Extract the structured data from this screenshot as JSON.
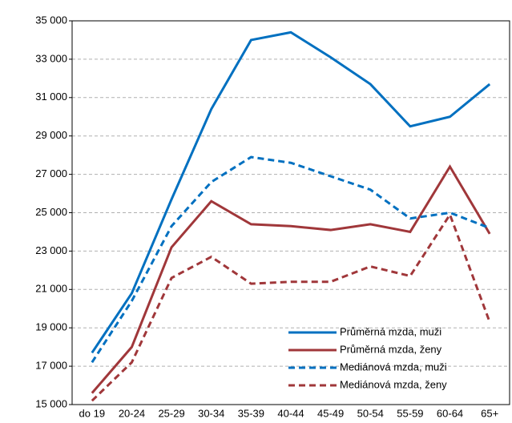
{
  "chart_data": {
    "type": "line",
    "categories": [
      "do 19",
      "20-24",
      "25-29",
      "30-34",
      "35-39",
      "40-44",
      "45-49",
      "50-54",
      "55-59",
      "60-64",
      "65+"
    ],
    "series": [
      {
        "name": "Průměrná mzda, muži",
        "color": "#0070c0",
        "style": "solid",
        "values": [
          17700,
          20800,
          25700,
          30400,
          34000,
          34400,
          33100,
          31700,
          29500,
          30000,
          31700
        ]
      },
      {
        "name": "Průměrná mzda, ženy",
        "color": "#a0373a",
        "style": "solid",
        "values": [
          15600,
          18000,
          23200,
          25600,
          24400,
          24300,
          24100,
          24400,
          24000,
          27400,
          23900
        ]
      },
      {
        "name": "Mediánová mzda, muži",
        "color": "#0070c0",
        "style": "dashed",
        "values": [
          17200,
          20400,
          24300,
          26600,
          27900,
          27600,
          26900,
          26200,
          24700,
          25000,
          24200
        ]
      },
      {
        "name": "Mediánová mzda, ženy",
        "color": "#a0373a",
        "style": "dashed",
        "values": [
          15200,
          17200,
          21600,
          22700,
          21300,
          21400,
          21400,
          22200,
          21700,
          24900,
          19300
        ]
      }
    ],
    "ylim": [
      15000,
      35000
    ],
    "yticks": [
      {
        "value": 15000,
        "label": "15 000"
      },
      {
        "value": 17000,
        "label": "17 000"
      },
      {
        "value": 19000,
        "label": "19 000"
      },
      {
        "value": 21000,
        "label": "21 000"
      },
      {
        "value": 23000,
        "label": "23 000"
      },
      {
        "value": 25000,
        "label": "25 000"
      },
      {
        "value": 27000,
        "label": "27 000"
      },
      {
        "value": 29000,
        "label": "29 000"
      },
      {
        "value": 31000,
        "label": "31 000"
      },
      {
        "value": 33000,
        "label": "33 000"
      },
      {
        "value": 35000,
        "label": "35 000"
      }
    ],
    "grid": true,
    "legend": "lower right"
  }
}
